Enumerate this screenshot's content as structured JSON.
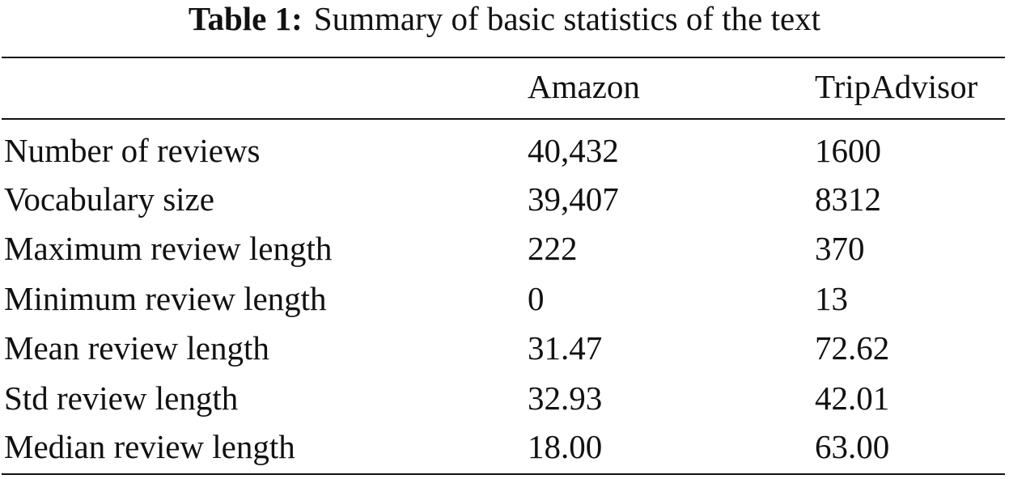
{
  "caption": {
    "label": "Table 1:",
    "text": "Summary of basic statistics of the text"
  },
  "table": {
    "columns": [
      "Amazon",
      "TripAdvisor"
    ],
    "rows": [
      [
        "Number of reviews",
        "40,432",
        "1600"
      ],
      [
        "Vocabulary size",
        "39,407",
        "8312"
      ],
      [
        "Maximum review length",
        "222",
        "370"
      ],
      [
        "Minimum review length",
        "0",
        "13"
      ],
      [
        "Mean review length",
        "31.47",
        "72.62"
      ],
      [
        "Std review length",
        "32.93",
        "42.01"
      ],
      [
        "Median review length",
        "18.00",
        "63.00"
      ]
    ]
  }
}
